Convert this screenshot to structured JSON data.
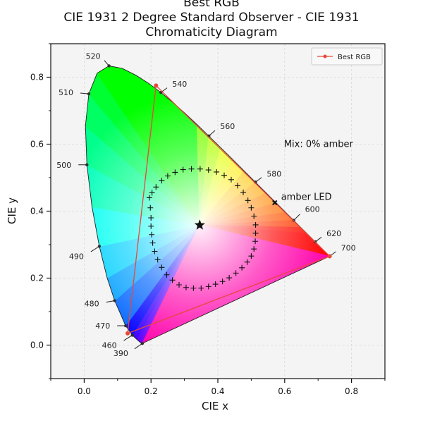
{
  "chart_data": {
    "type": "scatter",
    "title": [
      "Best RGB",
      "CIE 1931 2 Degree Standard Observer - CIE 1931",
      "Chromaticity Diagram"
    ],
    "xlabel": "CIE x",
    "ylabel": "CIE y",
    "xlim": [
      -0.1,
      0.9
    ],
    "ylim": [
      -0.1,
      0.9
    ],
    "xticks": [
      0.0,
      0.2,
      0.4,
      0.6,
      0.8
    ],
    "yticks": [
      0.0,
      0.2,
      0.4,
      0.6,
      0.8
    ],
    "xtick_labels": [
      "0.0",
      "0.2",
      "0.4",
      "0.6",
      "0.8"
    ],
    "ytick_labels": [
      "0.0",
      "0.2",
      "0.4",
      "0.6",
      "0.8"
    ],
    "grid": true,
    "legend": {
      "position": "top-right",
      "entries": [
        {
          "name": "Best RGB",
          "color": "#e8473a"
        }
      ]
    },
    "spectral_locus": [
      [
        0.1741,
        0.005
      ],
      [
        0.1733,
        0.0048
      ],
      [
        0.1726,
        0.0048
      ],
      [
        0.1714,
        0.0051
      ],
      [
        0.1689,
        0.0069
      ],
      [
        0.1644,
        0.0109
      ],
      [
        0.1566,
        0.0177
      ],
      [
        0.144,
        0.0297
      ],
      [
        0.1241,
        0.0578
      ],
      [
        0.0913,
        0.1327
      ],
      [
        0.0687,
        0.2007
      ],
      [
        0.0454,
        0.295
      ],
      [
        0.0235,
        0.4127
      ],
      [
        0.0082,
        0.5384
      ],
      [
        0.0039,
        0.6548
      ],
      [
        0.0139,
        0.7502
      ],
      [
        0.0389,
        0.812
      ],
      [
        0.0743,
        0.8338
      ],
      [
        0.1142,
        0.8262
      ],
      [
        0.1547,
        0.8059
      ],
      [
        0.1929,
        0.7816
      ],
      [
        0.2296,
        0.7543
      ],
      [
        0.2658,
        0.7243
      ],
      [
        0.3016,
        0.6923
      ],
      [
        0.3373,
        0.6589
      ],
      [
        0.3731,
        0.6245
      ],
      [
        0.4087,
        0.5896
      ],
      [
        0.4441,
        0.5547
      ],
      [
        0.4788,
        0.5202
      ],
      [
        0.5125,
        0.4866
      ],
      [
        0.5448,
        0.4544
      ],
      [
        0.5752,
        0.4242
      ],
      [
        0.6029,
        0.3965
      ],
      [
        0.627,
        0.3725
      ],
      [
        0.6482,
        0.3514
      ],
      [
        0.6658,
        0.334
      ],
      [
        0.6801,
        0.3197
      ],
      [
        0.6915,
        0.3083
      ],
      [
        0.7006,
        0.2993
      ],
      [
        0.7079,
        0.292
      ],
      [
        0.714,
        0.2859
      ],
      [
        0.719,
        0.2809
      ],
      [
        0.723,
        0.277
      ],
      [
        0.726,
        0.274
      ],
      [
        0.7283,
        0.2717
      ],
      [
        0.73,
        0.27
      ],
      [
        0.7347,
        0.2653
      ]
    ],
    "wavelength_labels": [
      {
        "nm": "390",
        "x": 0.1741,
        "y": 0.005
      },
      {
        "nm": "460",
        "x": 0.144,
        "y": 0.0297
      },
      {
        "nm": "470",
        "x": 0.1241,
        "y": 0.0578
      },
      {
        "nm": "480",
        "x": 0.0913,
        "y": 0.1327
      },
      {
        "nm": "490",
        "x": 0.0454,
        "y": 0.295
      },
      {
        "nm": "500",
        "x": 0.0082,
        "y": 0.5384
      },
      {
        "nm": "510",
        "x": 0.0139,
        "y": 0.7502
      },
      {
        "nm": "520",
        "x": 0.0743,
        "y": 0.8338
      },
      {
        "nm": "540",
        "x": 0.2296,
        "y": 0.7543
      },
      {
        "nm": "560",
        "x": 0.3731,
        "y": 0.6245
      },
      {
        "nm": "580",
        "x": 0.5125,
        "y": 0.4866
      },
      {
        "nm": "600",
        "x": 0.627,
        "y": 0.3725
      },
      {
        "nm": "620",
        "x": 0.6915,
        "y": 0.3083
      },
      {
        "nm": "700",
        "x": 0.7347,
        "y": 0.2653
      }
    ],
    "series": [
      {
        "name": "Best RGB",
        "color": "#e8473a",
        "points": [
          [
            0.7347,
            0.2653
          ],
          [
            0.215,
            0.775
          ],
          [
            0.13,
            0.035
          ],
          [
            0.7347,
            0.2653
          ]
        ]
      }
    ],
    "planckian_markers": [
      [
        0.195,
        0.44
      ],
      [
        0.198,
        0.41
      ],
      [
        0.2,
        0.38
      ],
      [
        0.2,
        0.355
      ],
      [
        0.202,
        0.33
      ],
      [
        0.205,
        0.305
      ],
      [
        0.211,
        0.28
      ],
      [
        0.22,
        0.255
      ],
      [
        0.232,
        0.232
      ],
      [
        0.247,
        0.21
      ],
      [
        0.264,
        0.194
      ],
      [
        0.284,
        0.18
      ],
      [
        0.305,
        0.172
      ],
      [
        0.327,
        0.17
      ],
      [
        0.35,
        0.17
      ],
      [
        0.372,
        0.175
      ],
      [
        0.393,
        0.182
      ],
      [
        0.414,
        0.19
      ],
      [
        0.434,
        0.201
      ],
      [
        0.454,
        0.215
      ],
      [
        0.472,
        0.231
      ],
      [
        0.488,
        0.248
      ],
      [
        0.5,
        0.266
      ],
      [
        0.508,
        0.287
      ],
      [
        0.512,
        0.31
      ],
      [
        0.513,
        0.334
      ],
      [
        0.513,
        0.359
      ],
      [
        0.508,
        0.385
      ],
      [
        0.5,
        0.41
      ],
      [
        0.49,
        0.432
      ],
      [
        0.476,
        0.456
      ],
      [
        0.459,
        0.476
      ],
      [
        0.44,
        0.494
      ],
      [
        0.419,
        0.507
      ],
      [
        0.396,
        0.517
      ],
      [
        0.372,
        0.523
      ],
      [
        0.347,
        0.526
      ],
      [
        0.321,
        0.526
      ],
      [
        0.296,
        0.524
      ],
      [
        0.272,
        0.516
      ],
      [
        0.25,
        0.505
      ],
      [
        0.232,
        0.491
      ],
      [
        0.215,
        0.472
      ],
      [
        0.203,
        0.455
      ]
    ],
    "white_point": [
      0.3457,
      0.3585
    ],
    "amber_led": {
      "label": "amber LED",
      "x": 0.5703,
      "y": 0.4253
    },
    "annotation": {
      "text": "Mix: 0% amber",
      "x": 0.598,
      "y": 0.6
    }
  }
}
